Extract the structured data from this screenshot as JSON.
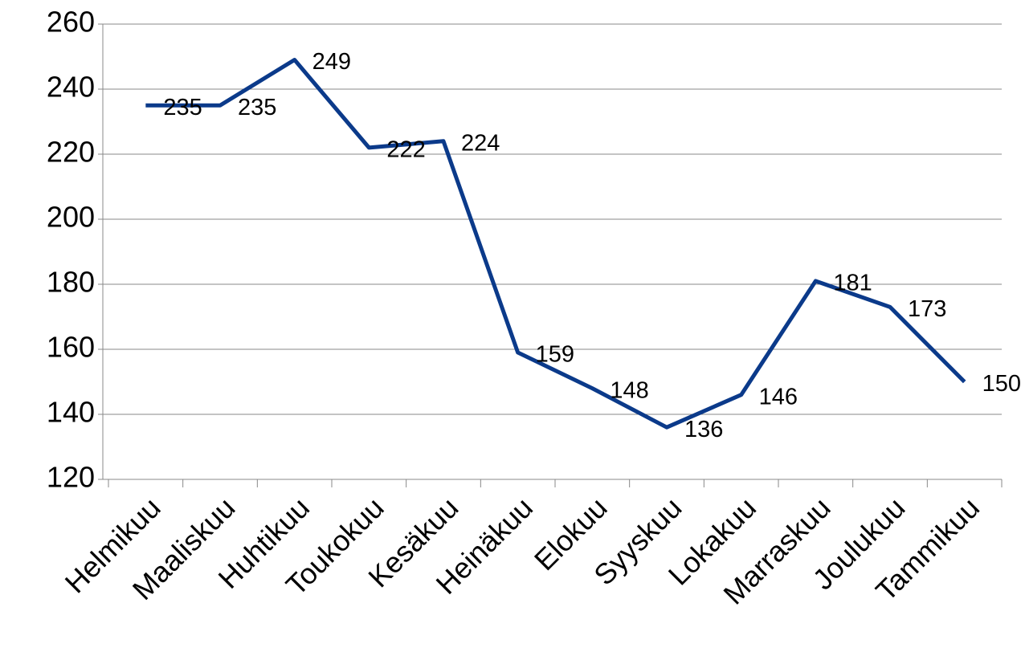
{
  "chart_data": {
    "type": "line",
    "categories": [
      "Helmikuu",
      "Maaliskuu",
      "Huhtikuu",
      "Toukokuu",
      "Kesäkuu",
      "Heinäkuu",
      "Elokuu",
      "Syyskuu",
      "Lokakuu",
      "Marraskuu",
      "Joulukuu",
      "Tammikuu"
    ],
    "values": [
      235,
      235,
      249,
      222,
      224,
      159,
      148,
      136,
      146,
      181,
      173,
      150
    ],
    "color": "#0b3a8a",
    "ylim": [
      120,
      260
    ],
    "yticks": [
      120,
      140,
      160,
      180,
      200,
      220,
      240,
      260
    ],
    "grid": true
  }
}
